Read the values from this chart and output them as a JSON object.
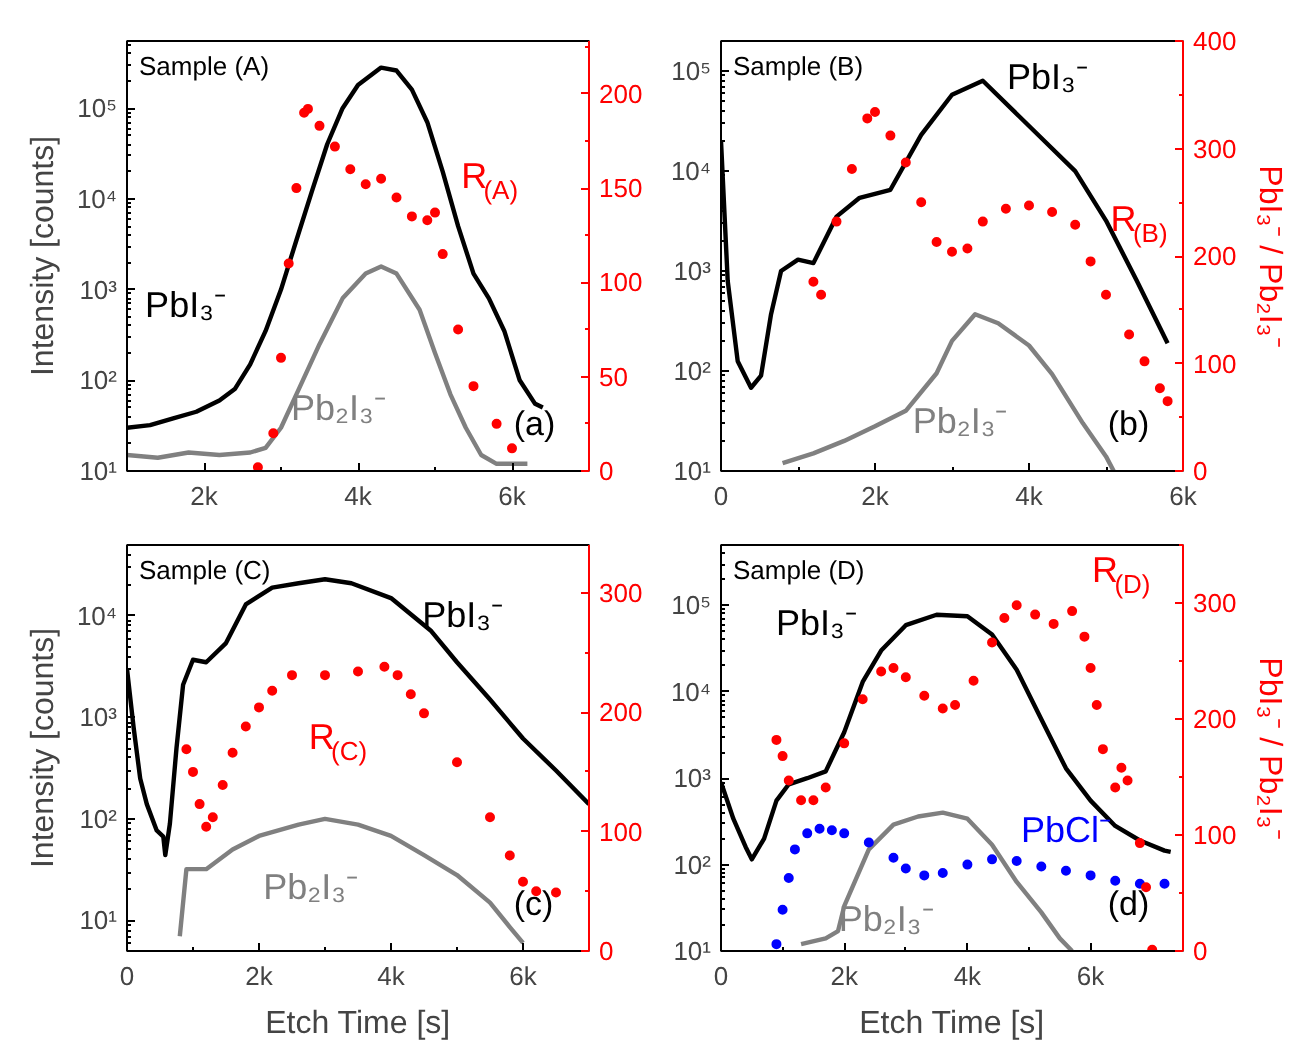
{
  "chart_data": [
    {
      "type": "line",
      "title": "Sample (A)",
      "ylabel": "Intensity [counts]",
      "log": "y",
      "xlim": [
        1000,
        7000
      ],
      "xticks": [
        {
          "value": 2000,
          "label": "2k"
        },
        {
          "value": 4000,
          "label": "4k"
        },
        {
          "value": 6000,
          "label": "6k"
        }
      ],
      "ylim": [
        10,
        550000
      ],
      "yticks": [
        {
          "value": 10,
          "label": "10¹"
        },
        {
          "value": 100,
          "label": "10²"
        },
        {
          "value": 1000,
          "label": "10³"
        },
        {
          "value": 10000,
          "label": "10⁴"
        },
        {
          "value": 100000,
          "label": "10⁵"
        }
      ],
      "y2lim": [
        0,
        228
      ],
      "y2ticks": [
        0,
        50,
        100,
        150,
        200
      ],
      "series": [
        {
          "name": "Pb₂I₃⁻",
          "color": "#808080",
          "x": [
            1000,
            1400,
            1800,
            2200,
            2600,
            2800,
            3000,
            3200,
            3500,
            3800,
            4100,
            4300,
            4500,
            4800,
            5000,
            5200,
            5400,
            5600,
            5800,
            6000,
            6200
          ],
          "values": [
            15,
            14,
            16,
            15,
            16,
            18,
            30,
            70,
            250,
            800,
            1500,
            1800,
            1500,
            600,
            200,
            70,
            30,
            15,
            12,
            12,
            12
          ]
        },
        {
          "name": "PbI₃⁻",
          "color": "#000000",
          "x": [
            1000,
            1300,
            1600,
            1900,
            2200,
            2400,
            2600,
            2800,
            3000,
            3200,
            3400,
            3600,
            3800,
            4000,
            4300,
            4500,
            4700,
            4900,
            5100,
            5300,
            5500,
            5700,
            5900,
            6100,
            6300,
            6400
          ],
          "values": [
            30,
            32,
            38,
            45,
            60,
            80,
            150,
            350,
            1000,
            3500,
            12000,
            40000,
            100000,
            180000,
            280000,
            260000,
            160000,
            70000,
            20000,
            5000,
            1500,
            800,
            350,
            100,
            55,
            50
          ]
        },
        {
          "name": "R$_{(A)}$",
          "type": "scatter",
          "marker": "circle",
          "axis": "y2",
          "color": "#ff0000",
          "x": [
            2700,
            2900,
            3000,
            3100,
            3200,
            3300,
            3350,
            3500,
            3700,
            3900,
            4100,
            4300,
            4500,
            4700,
            4900,
            5000,
            5100,
            5300,
            5500,
            5800,
            6000
          ],
          "values": [
            2,
            20,
            60,
            110,
            150,
            190,
            192,
            183,
            172,
            160,
            152,
            155,
            145,
            135,
            133,
            137,
            115,
            75,
            45,
            25,
            12
          ]
        }
      ],
      "annotations": [
        "(a)"
      ]
    },
    {
      "type": "line",
      "title": "Sample (B)",
      "y2label": "PbI₃⁻ / Pb₂I₃⁻",
      "log": "y",
      "xlim": [
        0,
        6000
      ],
      "xticks": [
        0,
        {
          "value": 2000,
          "label": "2k"
        },
        {
          "value": 4000,
          "label": "4k"
        },
        {
          "value": 6000,
          "label": "6k"
        }
      ],
      "ylim": [
        10,
        200000
      ],
      "yticks": [
        {
          "value": 10,
          "label": "10¹"
        },
        {
          "value": 100,
          "label": "10²"
        },
        {
          "value": 1000,
          "label": "10³"
        },
        {
          "value": 10000,
          "label": "10⁴"
        },
        {
          "value": 100000,
          "label": "10⁵"
        }
      ],
      "y2lim": [
        0,
        400
      ],
      "y2ticks": [
        0,
        100,
        200,
        300,
        400
      ],
      "series": [
        {
          "name": "Pb₂I₃⁻",
          "color": "#808080",
          "x": [
            800,
            1200,
            1600,
            2000,
            2400,
            2800,
            3000,
            3300,
            3600,
            4000,
            4300,
            4700,
            5000,
            5100
          ],
          "values": [
            12,
            15,
            20,
            28,
            40,
            95,
            200,
            370,
            300,
            180,
            93,
            30,
            14,
            10
          ]
        },
        {
          "name": "PbI₃⁻",
          "color": "#000000",
          "x": [
            0,
            87,
            217,
            390,
            520,
            650,
            780,
            1000,
            1200,
            1500,
            1800,
            2200,
            2600,
            3000,
            3400,
            3800,
            4200,
            4600,
            5000,
            5400,
            5800
          ],
          "values": [
            20000,
            800,
            125,
            68,
            90,
            370,
            1000,
            1300,
            1200,
            3500,
            5400,
            6500,
            23000,
            58000,
            80000,
            40000,
            20000,
            10000,
            3200,
            800,
            190
          ]
        },
        {
          "name": "R$_{(B)}$",
          "type": "scatter",
          "marker": "circle",
          "axis": "y2",
          "color": "#ff0000",
          "x": [
            1200,
            1300,
            1500,
            1700,
            1900,
            2000,
            2200,
            2400,
            2600,
            2800,
            3000,
            3200,
            3400,
            3700,
            4000,
            4300,
            4600,
            4800,
            5000,
            5300,
            5500,
            5700,
            5800
          ],
          "values": [
            176,
            164,
            232,
            281,
            328,
            334,
            312,
            287,
            250,
            213,
            204,
            207,
            232,
            244,
            247,
            241,
            229,
            195,
            164,
            127,
            102,
            77,
            65
          ]
        }
      ],
      "annotations": [
        "(b)"
      ]
    },
    {
      "type": "line",
      "title": "Sample (C)",
      "xlabel": "Etch Time [s]",
      "ylabel": "Intensity [counts]",
      "log": "y",
      "xlim": [
        0,
        7000
      ],
      "xticks": [
        0,
        {
          "value": 2000,
          "label": "2k"
        },
        {
          "value": 4000,
          "label": "4k"
        },
        {
          "value": 6000,
          "label": "6k"
        }
      ],
      "ylim": [
        5,
        50000
      ],
      "yticks": [
        {
          "value": 10,
          "label": "10¹"
        },
        {
          "value": 100,
          "label": "10²"
        },
        {
          "value": 1000,
          "label": "10³"
        },
        {
          "value": 10000,
          "label": "10⁴"
        }
      ],
      "y2lim": [
        0,
        340
      ],
      "y2ticks": [
        0,
        100,
        200,
        300
      ],
      "series": [
        {
          "name": "Pb₂I₃⁻",
          "color": "#808080",
          "x": [
            800,
            900,
            1200,
            1600,
            2000,
            2600,
            3000,
            3500,
            4000,
            4500,
            5000,
            5500,
            5800,
            6000
          ],
          "values": [
            7,
            32,
            32,
            50,
            68,
            88,
            100,
            88,
            68,
            44,
            28,
            15,
            8.6,
            6
          ]
        },
        {
          "name": "PbI₃⁻",
          "color": "#000000",
          "x": [
            0,
            100,
            200,
            300,
            450,
            550,
            580,
            650,
            750,
            850,
            1000,
            1200,
            1500,
            1800,
            2200,
            2600,
            3000,
            3400,
            4000,
            4600,
            5000,
            5500,
            6000,
            6500,
            7000
          ],
          "values": [
            3000,
            800,
            250,
            140,
            77,
            67,
            44,
            90,
            500,
            2100,
            3700,
            3500,
            5400,
            13000,
            19000,
            21000,
            23000,
            21000,
            15000,
            7200,
            3500,
            1500,
            620,
            300,
            140
          ]
        },
        {
          "name": "R$_{(C)}$",
          "type": "scatter",
          "marker": "circle",
          "axis": "y2",
          "color": "#ff0000",
          "x": [
            900,
            1000,
            1100,
            1200,
            1300,
            1450,
            1600,
            1800,
            2000,
            2200,
            2500,
            3000,
            3500,
            3900,
            4100,
            4300,
            4500,
            5000,
            5500,
            5800,
            6000,
            6200,
            6500
          ],
          "values": [
            169,
            150,
            123,
            104,
            112,
            139,
            166,
            188,
            204,
            218,
            231,
            231,
            234,
            238,
            231,
            215,
            199,
            158,
            112,
            80,
            58,
            50,
            49
          ]
        }
      ],
      "annotations": [
        "(c)"
      ]
    },
    {
      "type": "line",
      "title": "Sample (D)",
      "xlabel": "Etch Time [s]",
      "y2label": "PbI₃⁻ / Pb₂I₃⁻",
      "log": "y",
      "xlim": [
        0,
        7500
      ],
      "xticks": [
        0,
        {
          "value": 2000,
          "label": "2k"
        },
        {
          "value": 4000,
          "label": "4k"
        },
        {
          "value": 6000,
          "label": "6k"
        }
      ],
      "ylim": [
        10,
        500000
      ],
      "yticks": [
        {
          "value": 10,
          "label": "10¹"
        },
        {
          "value": 100,
          "label": "10²"
        },
        {
          "value": 1000,
          "label": "10³"
        },
        {
          "value": 10000,
          "label": "10⁴"
        },
        {
          "value": 100000,
          "label": "10⁵"
        }
      ],
      "y2lim": [
        0,
        350
      ],
      "y2ticks": [
        0,
        100,
        200,
        300
      ],
      "series": [
        {
          "name": "Pb₂I₃⁻",
          "color": "#808080",
          "x": [
            1300,
            1700,
            1900,
            2000,
            2400,
            2800,
            3200,
            3600,
            4000,
            4400,
            4800,
            5200,
            5500,
            5700
          ],
          "values": [
            12,
            14,
            17,
            33,
            150,
            290,
            360,
            400,
            340,
            170,
            63,
            28,
            14,
            10
          ]
        },
        {
          "name": "PbI₃⁻",
          "color": "#000000",
          "x": [
            0,
            200,
            400,
            500,
            700,
            900,
            1100,
            1400,
            1700,
            2000,
            2300,
            2600,
            3000,
            3500,
            4000,
            4400,
            4800,
            5200,
            5600,
            6000,
            6400,
            6800,
            7200,
            7300
          ],
          "values": [
            900,
            340,
            160,
            115,
            200,
            550,
            850,
            1000,
            1200,
            3400,
            13000,
            30000,
            59000,
            78000,
            75000,
            46000,
            18000,
            4800,
            1300,
            550,
            280,
            190,
            145,
            140
          ]
        },
        {
          "name": "PbCl⁻",
          "type": "scatter",
          "marker": "circle",
          "color": "#0000ff",
          "x": [
            900,
            1000,
            1100,
            1200,
            1400,
            1600,
            1800,
            2000,
            2400,
            2800,
            3000,
            3300,
            3600,
            4000,
            4400,
            4800,
            5200,
            5600,
            6000,
            6400,
            6800,
            7200
          ],
          "values": [
            12,
            30,
            70,
            150,
            230,
            260,
            250,
            230,
            180,
            120,
            90,
            75,
            80,
            100,
            115,
            110,
            95,
            85,
            75,
            65,
            60,
            60
          ]
        },
        {
          "name": "R$_{(D)}$",
          "type": "scatter",
          "marker": "circle",
          "axis": "y2",
          "color": "#ff0000",
          "x": [
            900,
            1000,
            1100,
            1300,
            1500,
            1700,
            2000,
            2300,
            2600,
            2800,
            3000,
            3300,
            3600,
            3800,
            4100,
            4400,
            4600,
            4800,
            5100,
            5400,
            5700,
            5900,
            6000,
            6100,
            6200,
            6400,
            6500,
            6600,
            6800,
            6900,
            7000
          ],
          "values": [
            182,
            168,
            147,
            130,
            130,
            141,
            179,
            217,
            241,
            244,
            236,
            220,
            209,
            212,
            233,
            266,
            287,
            298,
            290,
            282,
            293,
            271,
            244,
            212,
            174,
            141,
            158,
            147,
            93,
            55,
            1
          ]
        }
      ],
      "annotations": [
        "(d)"
      ]
    }
  ]
}
